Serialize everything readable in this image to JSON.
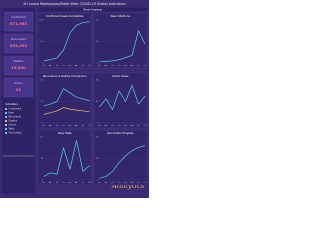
{
  "header": {
    "title": "Sri Lanka Monkeypox/State Wise COVID-19 Status Indicators",
    "section": "Trend Analysis"
  },
  "sidebar": {
    "kpis": [
      {
        "label": "Confirmed",
        "value": "671,983"
      },
      {
        "label": "Recovered",
        "value": "655,092"
      },
      {
        "label": "Deaths",
        "value": "16,840"
      },
      {
        "label": "Active",
        "value": "51"
      }
    ],
    "legend_title": "Indicators",
    "note": "Note: Data is sourced from the official reports of the health ministry and updated weekly."
  },
  "signature": "Analytics",
  "chart_data": [
    {
      "type": "line",
      "title": "Confirmed Cases Cumulative",
      "categories": [
        "Jan",
        "Apr",
        "Jul",
        "Oct",
        "Jan",
        "Apr",
        "Jul",
        "Oct"
      ],
      "series": [
        {
          "name": "Confirmed",
          "color": "#4fd8f0",
          "values": [
            5,
            8,
            12,
            30,
            70,
            88,
            94,
            96
          ]
        }
      ],
      "ylim": [
        0,
        100
      ],
      "yticks": [
        0,
        50,
        100
      ]
    },
    {
      "type": "line",
      "title": "New Infections",
      "categories": [
        "Jan",
        "Apr",
        "Jul",
        "Oct",
        "Jan",
        "Apr",
        "Jul",
        "Oct"
      ],
      "series": [
        {
          "name": "New",
          "color": "#4fd8f0",
          "values": [
            2,
            3,
            4,
            6,
            10,
            14,
            60,
            35
          ]
        }
      ],
      "ylim": [
        0,
        80
      ],
      "yticks": [
        0,
        40,
        80
      ]
    },
    {
      "type": "line",
      "title": "Recovered vs Deaths Comparison",
      "categories": [
        "Jan",
        "Apr",
        "Jul",
        "Oct",
        "Jan",
        "Apr",
        "Jul",
        "Oct"
      ],
      "series": [
        {
          "name": "Recovered",
          "color": "#4fd8f0",
          "values": [
            20,
            22,
            25,
            40,
            35,
            30,
            28,
            26
          ]
        },
        {
          "name": "Deaths",
          "color": "#f3c14b",
          "values": [
            10,
            12,
            14,
            18,
            16,
            15,
            14,
            13
          ]
        }
      ],
      "ylim": [
        0,
        50
      ],
      "yticks": [
        0,
        25,
        50
      ]
    },
    {
      "type": "line",
      "title": "Active Cases",
      "categories": [
        "Jan",
        "Apr",
        "Jul",
        "Oct",
        "Jan",
        "Apr",
        "Jul",
        "Oct"
      ],
      "series": [
        {
          "name": "Active",
          "color": "#4fd8f0",
          "values": [
            30,
            45,
            25,
            60,
            40,
            70,
            35,
            50
          ]
        }
      ],
      "ylim": [
        0,
        80
      ],
      "yticks": [
        0,
        40,
        80
      ]
    },
    {
      "type": "line",
      "title": "Daily Tests",
      "categories": [
        "Jan",
        "Apr",
        "Jul",
        "Oct",
        "Jan",
        "Apr",
        "Jul",
        "Oct"
      ],
      "series": [
        {
          "name": "Tests",
          "color": "#4fd8f0",
          "values": [
            5,
            10,
            8,
            45,
            15,
            55,
            12,
            20
          ]
        }
      ],
      "ylim": [
        0,
        60
      ],
      "yticks": [
        0,
        30,
        60
      ]
    },
    {
      "type": "line",
      "title": "Vaccination Progress",
      "categories": [
        "Jan",
        "Apr",
        "Jul",
        "Oct",
        "Jan",
        "Apr",
        "Jul",
        "Oct"
      ],
      "series": [
        {
          "name": "Vaccinated",
          "color": "#4fd8f0",
          "values": [
            2,
            4,
            10,
            20,
            28,
            34,
            38,
            40
          ]
        }
      ],
      "ylim": [
        0,
        50
      ],
      "yticks": [
        0,
        25,
        50
      ]
    }
  ]
}
